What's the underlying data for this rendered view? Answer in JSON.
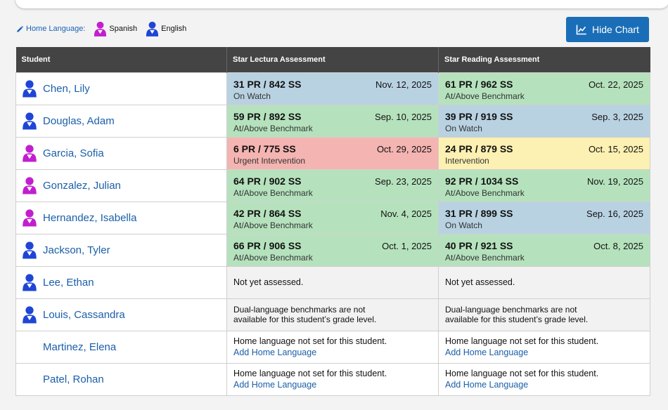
{
  "colors": {
    "spanish": "#c21ecf",
    "english": "#1f45d6",
    "accent": "#1a6eb8",
    "header": "#444444",
    "green": "#b5e2bd",
    "blue": "#b9d2e2",
    "red": "#f4b4b1",
    "yellow": "#fcf0b2"
  },
  "legend": {
    "edit_label": "Home Language:",
    "spanish_label": "Spanish",
    "english_label": "English"
  },
  "toolbar": {
    "hide_chart_label": "Hide Chart"
  },
  "table": {
    "headers": [
      "Student",
      "Star Lectura Assessment",
      "Star Reading Assessment"
    ],
    "rows": [
      {
        "name": "Chen, Lily",
        "lang": "english",
        "lectura": {
          "kind": "score",
          "color": "blue",
          "score": "31 PR / 842 SS",
          "date": "Nov. 12, 2025",
          "status": "On Watch"
        },
        "reading": {
          "kind": "score",
          "color": "green",
          "score": "61 PR / 962 SS",
          "date": "Oct. 22, 2025",
          "status": "At/Above Benchmark"
        }
      },
      {
        "name": "Douglas, Adam",
        "lang": "english",
        "lectura": {
          "kind": "score",
          "color": "green",
          "score": "59 PR / 892 SS",
          "date": "Sep. 10, 2025",
          "status": "At/Above Benchmark"
        },
        "reading": {
          "kind": "score",
          "color": "blue",
          "score": "39 PR / 919 SS",
          "date": "Sep. 3, 2025",
          "status": "On Watch"
        }
      },
      {
        "name": "Garcia, Sofia",
        "lang": "spanish",
        "lectura": {
          "kind": "score",
          "color": "red",
          "score": "6 PR / 775 SS",
          "date": "Oct. 29, 2025",
          "status": "Urgent Intervention"
        },
        "reading": {
          "kind": "score",
          "color": "yellow",
          "score": "24 PR / 879 SS",
          "date": "Oct. 15, 2025",
          "status": "Intervention"
        }
      },
      {
        "name": "Gonzalez, Julian",
        "lang": "spanish",
        "lectura": {
          "kind": "score",
          "color": "green",
          "score": "64 PR / 902 SS",
          "date": "Sep. 23, 2025",
          "status": "At/Above Benchmark"
        },
        "reading": {
          "kind": "score",
          "color": "green",
          "score": "92 PR / 1034 SS",
          "date": "Nov. 19, 2025",
          "status": "At/Above Benchmark"
        }
      },
      {
        "name": "Hernandez, Isabella",
        "lang": "spanish",
        "lectura": {
          "kind": "score",
          "color": "green",
          "score": "42 PR / 864 SS",
          "date": "Nov. 4, 2025",
          "status": "At/Above Benchmark"
        },
        "reading": {
          "kind": "score",
          "color": "blue",
          "score": "31 PR / 899 SS",
          "date": "Sep. 16, 2025",
          "status": "On Watch"
        }
      },
      {
        "name": "Jackson, Tyler",
        "lang": "english",
        "lectura": {
          "kind": "score",
          "color": "green",
          "score": "66 PR / 906 SS",
          "date": "Oct. 1, 2025",
          "status": "At/Above Benchmark"
        },
        "reading": {
          "kind": "score",
          "color": "green",
          "score": "40 PR / 921 SS",
          "date": "Oct. 8, 2025",
          "status": "At/Above Benchmark"
        }
      },
      {
        "name": "Lee, Ethan",
        "lang": "english",
        "lectura": {
          "kind": "none",
          "message": "Not yet assessed."
        },
        "reading": {
          "kind": "none",
          "message": "Not yet assessed."
        }
      },
      {
        "name": "Louis, Cassandra",
        "lang": "english",
        "lectura": {
          "kind": "na",
          "line1": "Dual-language benchmarks are not",
          "line2": "available for this student’s grade level."
        },
        "reading": {
          "kind": "na",
          "line1": "Dual-language benchmarks are not",
          "line2": "available for this student’s grade level."
        }
      },
      {
        "name": "Martinez, Elena",
        "lang": "",
        "lectura": {
          "kind": "nolang",
          "message": "Home language not set for this student.",
          "link": "Add Home Language"
        },
        "reading": {
          "kind": "nolang",
          "message": "Home language not set for this student.",
          "link": "Add Home Language"
        }
      },
      {
        "name": "Patel, Rohan",
        "lang": "",
        "lectura": {
          "kind": "nolang",
          "message": "Home language not set for this student.",
          "link": "Add Home Language"
        },
        "reading": {
          "kind": "nolang",
          "message": "Home language not set for this student.",
          "link": "Add Home Language"
        }
      }
    ]
  }
}
